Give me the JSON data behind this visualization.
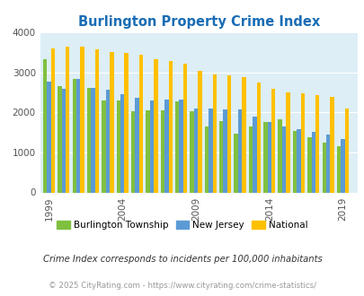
{
  "title": "Burlington Property Crime Index",
  "title_color": "#1a6db5",
  "background_color": "#ddeef6",
  "plot_bg_color": "#ddeef6",
  "years": [
    1999,
    2000,
    2001,
    2002,
    2003,
    2004,
    2005,
    2006,
    2007,
    2008,
    2009,
    2010,
    2011,
    2012,
    2013,
    2014,
    2015,
    2016,
    2017,
    2018,
    2019,
    2020
  ],
  "burlington": [
    3330,
    2650,
    2850,
    2620,
    2300,
    2300,
    2040,
    2050,
    2050,
    2280,
    2030,
    1660,
    1780,
    1470,
    1650,
    1760,
    1820,
    1530,
    1380,
    1250,
    1160,
    null
  ],
  "new_jersey": [
    2770,
    2600,
    2840,
    2620,
    2560,
    2460,
    2370,
    2310,
    2320,
    2330,
    2090,
    2100,
    2070,
    2070,
    1900,
    1760,
    1640,
    1580,
    1520,
    1450,
    1340,
    null
  ],
  "national": [
    3610,
    3650,
    3640,
    3590,
    3520,
    3480,
    3440,
    3340,
    3280,
    3220,
    3040,
    2960,
    2920,
    2880,
    2740,
    2600,
    2510,
    2480,
    2440,
    2380,
    2100,
    null
  ],
  "burlington_color": "#80c040",
  "nj_color": "#5b9bd5",
  "national_color": "#ffc000",
  "bar_width": 0.27,
  "ylim": [
    0,
    4000
  ],
  "yticks": [
    0,
    1000,
    2000,
    3000,
    4000
  ],
  "xlabel_ticks": [
    1999,
    2004,
    2009,
    2014,
    2019
  ],
  "footnote1": "Crime Index corresponds to incidents per 100,000 inhabitants",
  "footnote2": "© 2025 CityRating.com - https://www.cityrating.com/crime-statistics/",
  "legend_labels": [
    "Burlington Township",
    "New Jersey",
    "National"
  ]
}
